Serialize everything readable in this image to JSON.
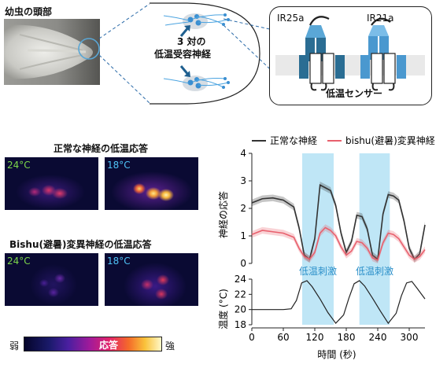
{
  "top": {
    "head_label": "幼虫の頭部",
    "neuron_count_label": "3 対の",
    "neuron_label": "低温受容神経",
    "receptor_left": "IR25a",
    "receptor_right": "IR21a",
    "sensor_label": "低温センサー"
  },
  "left": {
    "normal_title": "正常な神経の低温応答",
    "mutant_title": "Bishu(避暑)変異神経の低温応答",
    "temp_warm": "24°C",
    "temp_cold": "18°C",
    "scale_weak": "弱",
    "scale_response": "応答",
    "scale_strong": "強",
    "colors": {
      "warm_label": "#7cd64a",
      "cold_label": "#4fc3f7"
    }
  },
  "chart_data": [
    {
      "type": "line",
      "legend": [
        "正常な神経",
        "bishu(避暑)変異神経"
      ],
      "ylabel": "神経の応答",
      "ylim": [
        0,
        4
      ],
      "yticks": [
        "0",
        "1",
        "2",
        "3",
        "4"
      ],
      "stim_label": "低温刺激",
      "stimulus_windows": [
        [
          96,
          156
        ],
        [
          205,
          263
        ]
      ],
      "series": [
        {
          "name": "正常な神経",
          "color": "#333333",
          "x": [
            0,
            20,
            40,
            60,
            80,
            90,
            100,
            110,
            120,
            130,
            140,
            150,
            160,
            170,
            180,
            190,
            200,
            210,
            220,
            230,
            240,
            250,
            260,
            270,
            280,
            290,
            300,
            310,
            320,
            330
          ],
          "y": [
            2.2,
            2.35,
            2.38,
            2.3,
            2.05,
            1.3,
            0.3,
            0.15,
            0.9,
            2.85,
            2.75,
            2.65,
            2.1,
            1.1,
            0.4,
            0.8,
            1.75,
            1.7,
            1.25,
            0.3,
            0.15,
            1.8,
            2.5,
            2.45,
            2.3,
            1.55,
            0.55,
            0.15,
            0.35,
            1.4
          ]
        },
        {
          "name": "bishu(避暑)変異神経",
          "color": "#e8606d",
          "x": [
            0,
            20,
            40,
            60,
            80,
            90,
            100,
            110,
            120,
            130,
            140,
            150,
            160,
            170,
            180,
            190,
            200,
            210,
            220,
            230,
            240,
            250,
            260,
            270,
            280,
            290,
            300,
            310,
            320,
            330
          ],
          "y": [
            1.05,
            1.2,
            1.15,
            1.1,
            0.95,
            0.55,
            0.25,
            0.15,
            0.4,
            1.1,
            1.3,
            1.2,
            1.0,
            0.6,
            0.3,
            0.45,
            0.8,
            0.75,
            0.55,
            0.2,
            0.12,
            0.75,
            1.1,
            1.05,
            0.9,
            0.6,
            0.3,
            0.15,
            0.25,
            0.5
          ]
        }
      ]
    },
    {
      "type": "line",
      "xlabel": "時間 (秒)",
      "ylabel": "温度 (°C)",
      "ylim": [
        18,
        24
      ],
      "yticks": [
        "18",
        "20",
        "22",
        "24"
      ],
      "xlim": [
        0,
        330
      ],
      "xticks": [
        "0",
        "60",
        "120",
        "180",
        "240",
        "300"
      ],
      "series": [
        {
          "color": "#222222",
          "x": [
            0,
            20,
            40,
            60,
            75,
            85,
            95,
            105,
            115,
            130,
            145,
            160,
            175,
            185,
            195,
            205,
            215,
            230,
            245,
            260,
            275,
            285,
            295,
            305,
            315,
            330
          ],
          "y": [
            20.0,
            20.0,
            20.0,
            20.0,
            20.1,
            21.2,
            23.5,
            23.8,
            23.0,
            21.4,
            19.6,
            18.2,
            19.3,
            21.5,
            23.4,
            23.8,
            23.1,
            21.5,
            19.8,
            18.2,
            19.5,
            21.8,
            23.5,
            23.7,
            22.8,
            21.4
          ]
        }
      ]
    }
  ]
}
